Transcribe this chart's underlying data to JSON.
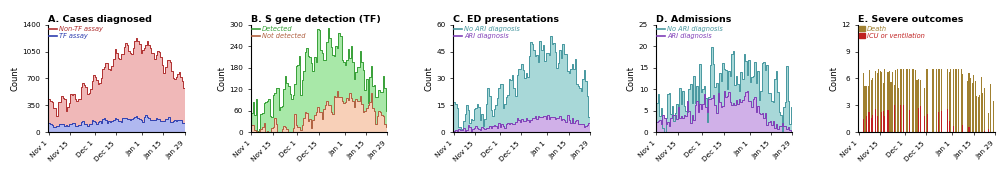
{
  "title_A": "A. Cases diagnosed",
  "title_B": "B. S gene detection (TF)",
  "title_C": "C. ED presentations",
  "title_D": "D. Admissions",
  "title_E": "E. Severe outcomes",
  "ylabel": "Count",
  "xtick_labels": [
    "Nov 1",
    "Nov 15",
    "Dec 1",
    "Dec 15",
    "Jan 1",
    "Jan 15",
    "Jan 29"
  ],
  "xtick_pos": [
    0,
    14,
    30,
    44,
    61,
    75,
    89
  ],
  "legend_A": [
    "Non-TF assay",
    "TF assay"
  ],
  "legend_B": [
    "Detected",
    "Not detected"
  ],
  "legend_C": [
    "No ARI diagnosis",
    "ARI diagnosis"
  ],
  "legend_D": [
    "No ARI diagnosis",
    "ARI diagnosis"
  ],
  "legend_E": [
    "Death",
    "ICU or ventilation"
  ],
  "color_A_top": "#b03030",
  "color_A_top_fill": "#f0b8b8",
  "color_A_bot": "#3040b0",
  "color_A_bot_fill": "#b0b8f0",
  "color_B_top": "#38a038",
  "color_B_top_fill": "#a8e8a8",
  "color_B_bot": "#b06040",
  "color_B_bot_fill": "#f8d0b8",
  "color_C_top": "#4898a0",
  "color_C_top_fill": "#a8d8d8",
  "color_C_bot": "#8040b8",
  "color_C_bot_fill": "#d0b0e8",
  "color_D_top": "#4898a0",
  "color_D_top_fill": "#a8d8d8",
  "color_D_bot": "#8040b8",
  "color_D_bot_fill": "#d0b0e8",
  "color_E_death": "#a08030",
  "color_E_icu": "#c02020",
  "ylim_A": [
    0,
    1400
  ],
  "ylim_B": [
    0,
    300
  ],
  "ylim_C": [
    0,
    60
  ],
  "ylim_D": [
    0,
    25
  ],
  "ylim_E": [
    0,
    12
  ],
  "yticks_A": [
    0,
    350,
    700,
    1050,
    1400
  ],
  "yticks_B": [
    0,
    60,
    120,
    180,
    240,
    300
  ],
  "yticks_C": [
    0,
    15,
    30,
    45,
    60
  ],
  "yticks_D": [
    0,
    5,
    10,
    15,
    20,
    25
  ],
  "yticks_E": [
    0,
    3,
    6,
    9,
    12
  ]
}
